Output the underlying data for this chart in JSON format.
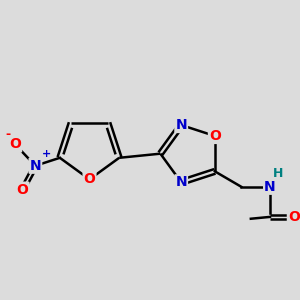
{
  "bg_color": "#dcdcdc",
  "atom_colors": {
    "C": "#000000",
    "N": "#0000cc",
    "O": "#ff0000",
    "H": "#008080"
  },
  "bond_color": "#000000",
  "line_width": 1.8,
  "figsize": [
    3.0,
    3.0
  ],
  "dpi": 100
}
